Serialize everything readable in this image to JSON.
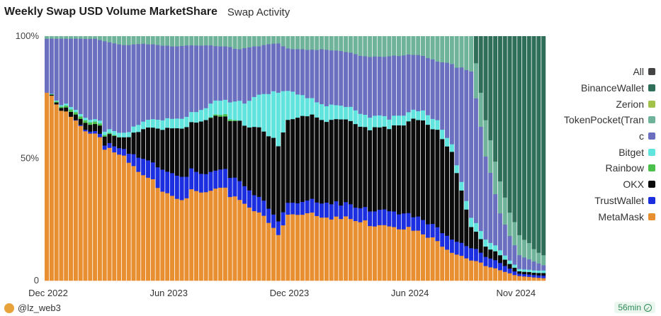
{
  "header": {
    "title": "Weekly Swap USD Volume MarketShare",
    "subtitle": "Swap Activity"
  },
  "footer": {
    "author": "@lz_web3",
    "freshness": "56min"
  },
  "chart_data": {
    "type": "bar",
    "stacked": true,
    "title": "Weekly Swap USD Volume MarketShare",
    "ylim": [
      0,
      100
    ],
    "y_ticks": [
      "0",
      "50%",
      "100%"
    ],
    "x_ticks": [
      "Dec 2022",
      "Jun 2023",
      "Dec 2023",
      "Jun 2024",
      "Nov 2024"
    ],
    "legend_position": "right",
    "colors": {
      "All": "#444444",
      "BinanceWallet": "#2f6f5a",
      "Zerion": "#a3c24b",
      "TokenPocket(Tran": "#6fb39a",
      "c": "#6a6fc0",
      "Bitget": "#62e4de",
      "Rainbow": "#4cc04c",
      "OKX": "#0b0b0b",
      "TrustWallet": "#1c2fe0",
      "MetaMask": "#e88f31"
    },
    "legend": [
      "All",
      "BinanceWallet",
      "Zerion",
      "TokenPocket(Tran",
      "c",
      "Bitget",
      "Rainbow",
      "OKX",
      "TrustWallet",
      "MetaMask"
    ],
    "series_order": [
      "MetaMask",
      "TrustWallet",
      "OKX",
      "Rainbow",
      "Bitget",
      "c",
      "TokenPocket(Tran",
      "Zerion",
      "BinanceWallet"
    ],
    "keyframes": {
      "weeks": [
        0,
        5,
        10,
        16,
        20,
        27,
        33,
        37,
        40,
        44,
        48,
        50,
        54,
        60,
        66,
        72,
        77,
        81,
        84,
        88,
        91,
        94,
        98,
        103
      ],
      "MetaMask": [
        77,
        65,
        60,
        50,
        42,
        35,
        36,
        37,
        33,
        28,
        19,
        27,
        28,
        26,
        24,
        23,
        20,
        16,
        12,
        9,
        6,
        4,
        2,
        1
      ],
      "TrustWallet": [
        0,
        0,
        1,
        3,
        7,
        9,
        8,
        8,
        7,
        6,
        6,
        5,
        5,
        6,
        6,
        6,
        6,
        6,
        5,
        5,
        4,
        3,
        1,
        1
      ],
      "OKX": [
        0,
        2,
        3,
        5,
        12,
        20,
        22,
        21,
        25,
        29,
        30,
        33,
        35,
        34,
        32,
        35,
        40,
        38,
        35,
        9,
        4,
        3,
        1,
        1
      ],
      "Rainbow": [
        0,
        1,
        1,
        0,
        0,
        0,
        0,
        1,
        0,
        0,
        0,
        0,
        0,
        0,
        0,
        0,
        0,
        0,
        0,
        0,
        0,
        0,
        0,
        0
      ],
      "Bitget": [
        0,
        1,
        1,
        2,
        3,
        4,
        5,
        6,
        8,
        14,
        22,
        12,
        7,
        6,
        5,
        4,
        4,
        4,
        3,
        4,
        3,
        2,
        1,
        1
      ],
      "c": [
        22,
        30,
        33,
        36,
        33,
        28,
        25,
        23,
        22,
        19,
        20,
        18,
        20,
        22,
        25,
        24,
        22,
        26,
        34,
        58,
        33,
        16,
        6,
        2
      ],
      "TokenPocket(Tran": [
        1,
        1,
        1,
        4,
        3,
        4,
        4,
        4,
        5,
        4,
        3,
        5,
        5,
        6,
        8,
        8,
        8,
        10,
        11,
        15,
        15,
        12,
        8,
        4
      ],
      "Zerion": [
        0,
        0,
        0,
        0,
        0,
        0,
        0,
        0,
        0,
        0,
        0,
        0,
        0,
        0,
        0,
        0,
        0,
        0,
        0,
        0,
        0,
        0,
        0,
        0
      ],
      "BinanceWallet": [
        0,
        0,
        0,
        0,
        0,
        0,
        0,
        0,
        0,
        0,
        0,
        0,
        0,
        0,
        0,
        0,
        0,
        0,
        0,
        0,
        35,
        60,
        81,
        89
      ]
    }
  }
}
